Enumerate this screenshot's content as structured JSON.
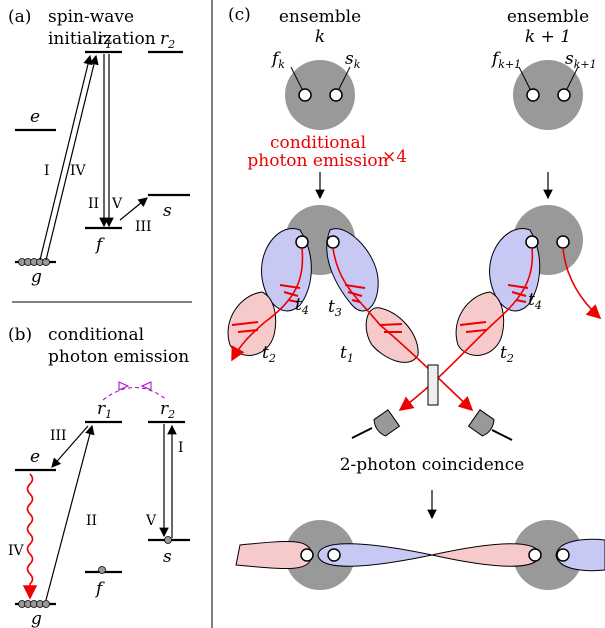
{
  "panel_a": {
    "label": "(a)",
    "title_lines": [
      "spin-wave",
      "initialization"
    ],
    "levels": {
      "r1": {
        "base": "r",
        "sub": "1"
      },
      "r2": {
        "base": "r",
        "sub": "2"
      },
      "e": "e",
      "s": "s",
      "f": "f",
      "g": "g"
    },
    "transitions": [
      "I",
      "IV",
      "II",
      "V",
      "III"
    ]
  },
  "panel_b": {
    "label": "(b)",
    "title_lines": [
      "conditional",
      "photon emission"
    ],
    "levels": {
      "r1": {
        "base": "r",
        "sub": "1"
      },
      "r2": {
        "base": "r",
        "sub": "2"
      },
      "e": "e",
      "s": "s",
      "f": "f",
      "g": "g"
    },
    "transitions": [
      "III",
      "II",
      "IV",
      "I",
      "V"
    ]
  },
  "panel_c": {
    "label": "(c)",
    "ensembles": [
      {
        "title": "ensemble",
        "index": "k",
        "f": {
          "base": "f",
          "sub": "k"
        },
        "s": {
          "base": "s",
          "sub": "k"
        }
      },
      {
        "title": "ensemble",
        "index": "k + 1",
        "f": {
          "base": "f",
          "sub": "k+1"
        },
        "s": {
          "base": "s",
          "sub": "k+1"
        }
      }
    ],
    "emission_lines": [
      "conditional",
      "photon emission"
    ],
    "repeat": "×4",
    "time_bins": [
      {
        "base": "t",
        "sub": "4"
      },
      {
        "base": "t",
        "sub": "3"
      },
      {
        "base": "t",
        "sub": "2"
      },
      {
        "base": "t",
        "sub": "1"
      },
      {
        "base": "t",
        "sub": "4"
      },
      {
        "base": "t",
        "sub": "2"
      }
    ],
    "coincidence": "2-photon coincidence"
  }
}
